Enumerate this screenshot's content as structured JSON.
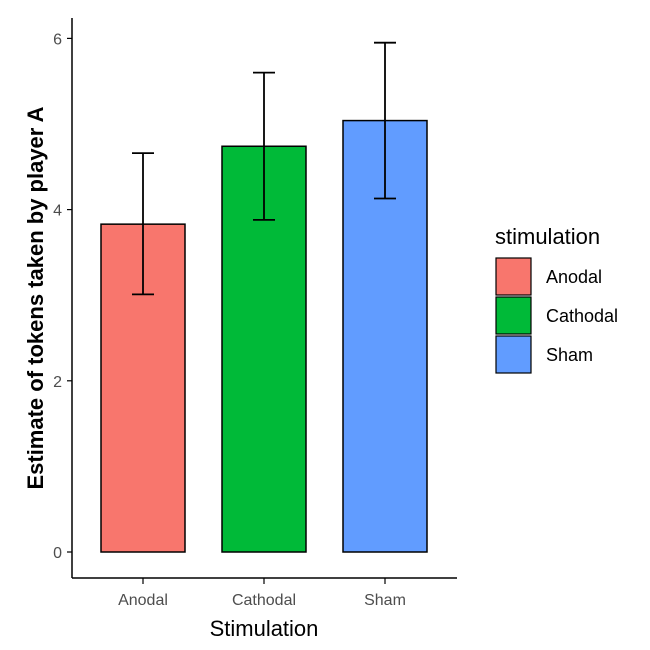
{
  "chart_data": {
    "type": "bar",
    "title": "",
    "xlabel": "Stimulation",
    "ylabel": "Estimate of tokens taken by player A",
    "categories": [
      "Anodal",
      "Cathodal",
      "Sham"
    ],
    "values": [
      3.83,
      4.74,
      5.04
    ],
    "error_bars": [
      {
        "low": 3.01,
        "high": 4.66
      },
      {
        "low": 3.88,
        "high": 5.6
      },
      {
        "low": 4.13,
        "high": 5.95
      }
    ],
    "colors": [
      "#F8766D",
      "#00BA38",
      "#619CFF"
    ],
    "ylim": [
      0,
      6.3
    ],
    "yticks": [
      0,
      2,
      4,
      6
    ],
    "grid": false,
    "legend": {
      "title": "stimulation",
      "position": "right",
      "entries": [
        "Anodal",
        "Cathodal",
        "Sham"
      ]
    }
  }
}
